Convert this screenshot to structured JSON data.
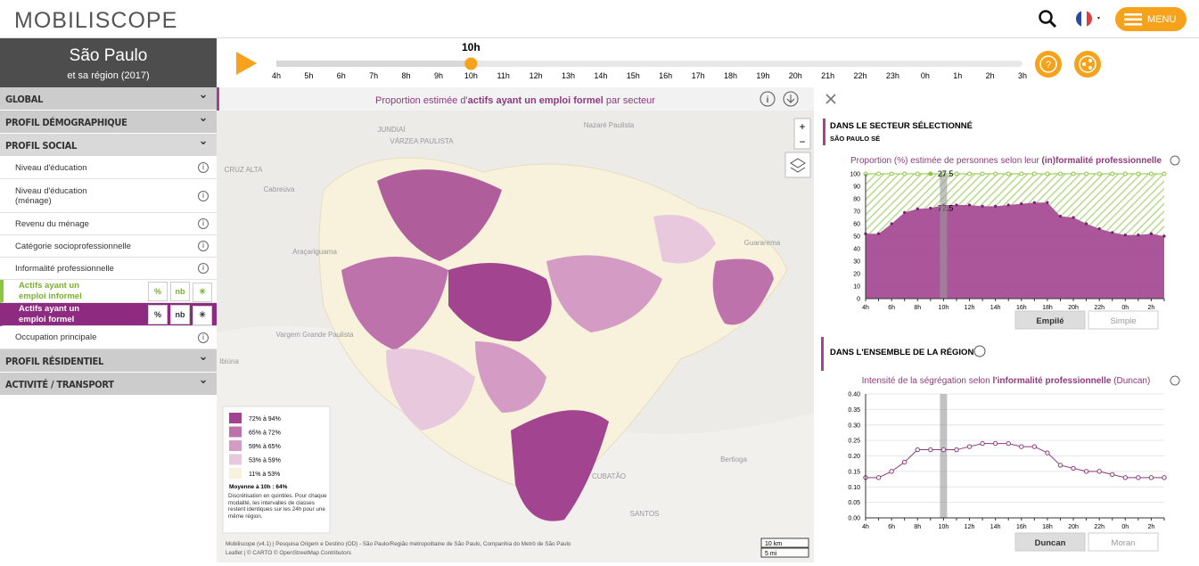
{
  "header": {
    "logo": "MOBILISCOPE",
    "menu": "MENU"
  },
  "city": {
    "name": "São Paulo",
    "subtitle": "et sa région (2017)"
  },
  "menu": {
    "sections_top": [
      "GLOBAL",
      "PROFIL DÉMOGRAPHIQUE"
    ],
    "social": "PROFIL SOCIAL",
    "items": [
      "Niveau d'éducation",
      "Niveau d'éducation (ménage)",
      "Revenu du ménage",
      "Catégorie socioprofessionnelle",
      "Informalité professionnelle"
    ],
    "informal": "Actifs ayant un emploi informel",
    "formal": "Actifs ayant un emploi formel",
    "buttons": [
      "%",
      "nb",
      "✳"
    ],
    "occupation": "Occupation principale",
    "sections_bottom": [
      "PROFIL RÉSIDENTIEL",
      "ACTIVITÉ / TRANSPORT"
    ]
  },
  "timeline": {
    "current": "10h",
    "hours": [
      "4h",
      "5h",
      "6h",
      "7h",
      "8h",
      "9h",
      "10h",
      "11h",
      "12h",
      "13h",
      "14h",
      "15h",
      "16h",
      "17h",
      "18h",
      "19h",
      "20h",
      "21h",
      "22h",
      "23h",
      "0h",
      "1h",
      "2h",
      "3h"
    ]
  },
  "map": {
    "title": [
      "Proportion estimée d'",
      "actifs ayant un emploi formel",
      " par secteur"
    ],
    "places": [
      "JUNDIAÍ",
      "VÁRZEA PAULISTA",
      "CRUZ ALTA",
      "Cabreúva",
      "Nazaré Paulista",
      "Araçariguama",
      "Vargem Grande Paulista",
      "Ibiúna",
      "CUBATÃO",
      "SANTOS",
      "Bertioga",
      "Guararema"
    ],
    "legend": {
      "classes": [
        {
          "label": "72% à 94%",
          "color": "#a2448f"
        },
        {
          "label": "65% à 72%",
          "color": "#bd72ac"
        },
        {
          "label": "59% à 65%",
          "color": "#d49cc4"
        },
        {
          "label": "53% à 59%",
          "color": "#e8c8dc"
        },
        {
          "label": "11% à 53%",
          "color": "#f8f1dc"
        }
      ],
      "mean": "Moyenne à 10h : 64%",
      "note": "Discrétisation en quintiles. Pour chaque modalité, les intervalles de classes restent identiques sur les 24h pour une même région."
    },
    "attribution": [
      "Mobiliscope (v4.1) | Pesquisa Origem e Destino (OD) - São Paulo/Região metropolitaine de São Paulo, Companhia do Metrô de São Paulo",
      "Leaflet | © CARTO © OpenStreetMap Contributors"
    ],
    "scale": [
      "10 km",
      "5 mi"
    ]
  },
  "panel": {
    "sector_title": "DANS LE SECTEUR SÉLECTIONNÉ",
    "sector_name": "SÃO PAULO SÉ",
    "buttons1": [
      "Empilé",
      "Simple"
    ],
    "region_title": "DANS L'ENSEMBLE DE LA RÉGION",
    "buttons2": [
      "Duncan",
      "Moran"
    ]
  },
  "chart_data": [
    {
      "type": "area",
      "title": [
        "Proportion (%) estimée de personnes selon leur ",
        "(in)formalité professionnelle"
      ],
      "categories": [
        "4h",
        null,
        "6h",
        null,
        "8h",
        null,
        "10h",
        null,
        "12h",
        null,
        "14h",
        null,
        "16h",
        null,
        "18h",
        null,
        "20h",
        null,
        "22h",
        null,
        "0h",
        null,
        "2h",
        null
      ],
      "series": [
        {
          "name": "Actifs ayant un emploi formel",
          "color": "#a2448f",
          "values": [
            52,
            52,
            60,
            69,
            72,
            72.5,
            75,
            75,
            75,
            74,
            74,
            75,
            76,
            77,
            77,
            66,
            65,
            60,
            56,
            53,
            51,
            51,
            52,
            50
          ]
        },
        {
          "name": "Actifs ayant un emploi informel",
          "color": "#8cc63f",
          "values": [
            48,
            48,
            40,
            31,
            28,
            27.5,
            25,
            25,
            25,
            26,
            26,
            25,
            24,
            23,
            23,
            34,
            35,
            40,
            44,
            47,
            49,
            49,
            48,
            50
          ]
        }
      ],
      "ylim": [
        0,
        100
      ],
      "yticks": [
        0,
        10,
        20,
        30,
        40,
        50,
        60,
        70,
        80,
        90,
        100
      ]
    },
    {
      "type": "line",
      "title": [
        "Intensité de la ségrégation selon ",
        "l'informalité professionnelle",
        " (Duncan)"
      ],
      "categories": [
        "4h",
        null,
        "6h",
        null,
        "8h",
        null,
        "10h",
        null,
        "12h",
        null,
        "14h",
        null,
        "16h",
        null,
        "18h",
        null,
        "20h",
        null,
        "22h",
        null,
        "0h",
        null,
        "2h",
        null
      ],
      "series": [
        {
          "name": "Duncan",
          "color": "#8e3b7e",
          "values": [
            0.13,
            0.13,
            0.15,
            0.18,
            0.22,
            0.22,
            0.22,
            0.22,
            0.23,
            0.24,
            0.24,
            0.24,
            0.23,
            0.23,
            0.21,
            0.17,
            0.16,
            0.15,
            0.15,
            0.14,
            0.13,
            0.13,
            0.13,
            0.13
          ]
        }
      ],
      "ylim": [
        0,
        0.4
      ],
      "yticks": [
        {
          "value": 0,
          "label": "0.00"
        },
        {
          "value": 0.05,
          "label": "0.05"
        },
        {
          "value": 0.1,
          "label": "0.10"
        },
        {
          "value": 0.15,
          "label": "0.15"
        },
        {
          "value": 0.2,
          "label": "0.20"
        },
        {
          "value": 0.25,
          "label": "0.25"
        },
        {
          "value": 0.3,
          "label": "0.30"
        },
        {
          "value": 0.35,
          "label": "0.35"
        },
        {
          "value": 0.4,
          "label": "0.40"
        }
      ]
    }
  ]
}
